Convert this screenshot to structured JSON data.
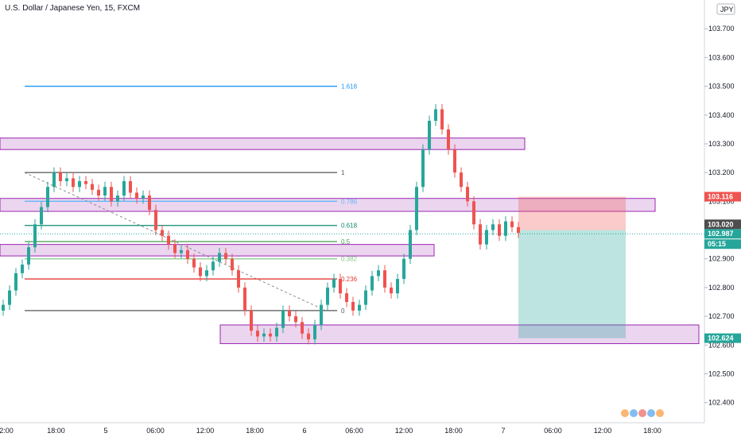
{
  "header": {
    "title": "U.S. Dollar / Japanese Yen, 15, FXCM",
    "currency": "JPY"
  },
  "colors": {
    "up": "#26a69a",
    "down": "#ef5350",
    "zone_fill": "#e1bee7",
    "zone_stroke": "#9c27b0",
    "price_line": "#26a69a"
  },
  "chart_data": {
    "type": "candlestick",
    "title": "U.S. Dollar / Japanese Yen, 15, FXCM",
    "ylim": [
      102.33,
      103.8
    ],
    "price_ticks": [
      "103.700",
      "103.600",
      "103.500",
      "103.400",
      "103.300",
      "103.200",
      "103.100",
      "103.000",
      "102.900",
      "102.800",
      "102.700",
      "102.600",
      "102.500",
      "102.400"
    ],
    "time_ticks": [
      "2:00",
      "18:00",
      "5",
      "06:00",
      "12:00",
      "18:00",
      "6",
      "06:00",
      "12:00",
      "18:00",
      "7",
      "06:00",
      "12:00",
      "18:00"
    ],
    "candles_close_path": [
      102.74,
      102.79,
      102.85,
      102.88,
      102.94,
      103.02,
      103.08,
      103.15,
      103.2,
      103.17,
      103.18,
      103.15,
      103.17,
      103.16,
      103.14,
      103.12,
      103.15,
      103.1,
      103.12,
      103.17,
      103.13,
      103.11,
      103.12,
      103.07,
      103.0,
      102.98,
      102.95,
      102.92,
      102.93,
      102.9,
      102.87,
      102.84,
      102.86,
      102.89,
      102.92,
      102.9,
      102.86,
      102.8,
      102.72,
      102.65,
      102.63,
      102.64,
      102.63,
      102.66,
      102.72,
      102.7,
      102.68,
      102.64,
      102.62,
      102.67,
      102.74,
      102.8,
      102.83,
      102.78,
      102.75,
      102.72,
      102.74,
      102.79,
      102.84,
      102.86,
      102.8,
      102.78,
      102.83,
      102.9,
      103.0,
      103.15,
      103.28,
      103.38,
      103.42,
      103.35,
      103.28,
      103.2,
      103.15,
      103.1,
      103.02,
      102.95,
      103.0,
      103.02,
      102.98,
      103.03,
      103.01,
      102.99
    ],
    "fibonacci": [
      {
        "label": "1.618",
        "price": 103.5,
        "color": "#2196f3"
      },
      {
        "label": "1",
        "price": 103.2,
        "color": "#555555"
      },
      {
        "label": "0.786",
        "price": 103.1,
        "color": "#64b5f6"
      },
      {
        "label": "0.618",
        "price": 103.016,
        "color": "#0b8a6e"
      },
      {
        "label": "0.5",
        "price": 102.96,
        "color": "#43a047"
      },
      {
        "label": "0.382",
        "price": 102.9,
        "color": "#81c784"
      },
      {
        "label": "0.236",
        "price": 102.83,
        "color": "#e53935"
      },
      {
        "label": "0",
        "price": 102.72,
        "color": "#555555"
      }
    ],
    "zones": [
      {
        "top": 103.32,
        "bottom": 103.28
      },
      {
        "top": 103.11,
        "bottom": 103.065
      },
      {
        "top": 102.95,
        "bottom": 102.91
      },
      {
        "top": 102.67,
        "bottom": 102.605
      }
    ],
    "position": {
      "entry": 103.0,
      "stop": 103.116,
      "target": 102.624
    },
    "last_price": 102.987,
    "price_tags": [
      {
        "text": "103.116",
        "color": "#ef5350"
      },
      {
        "text": "103.020",
        "color": "#4d4d4d"
      },
      {
        "text": "102.987",
        "color": "#26a69a"
      },
      {
        "text": "05:15",
        "color": "#26a69a"
      },
      {
        "text": "102.624",
        "color": "#26a69a"
      }
    ]
  }
}
